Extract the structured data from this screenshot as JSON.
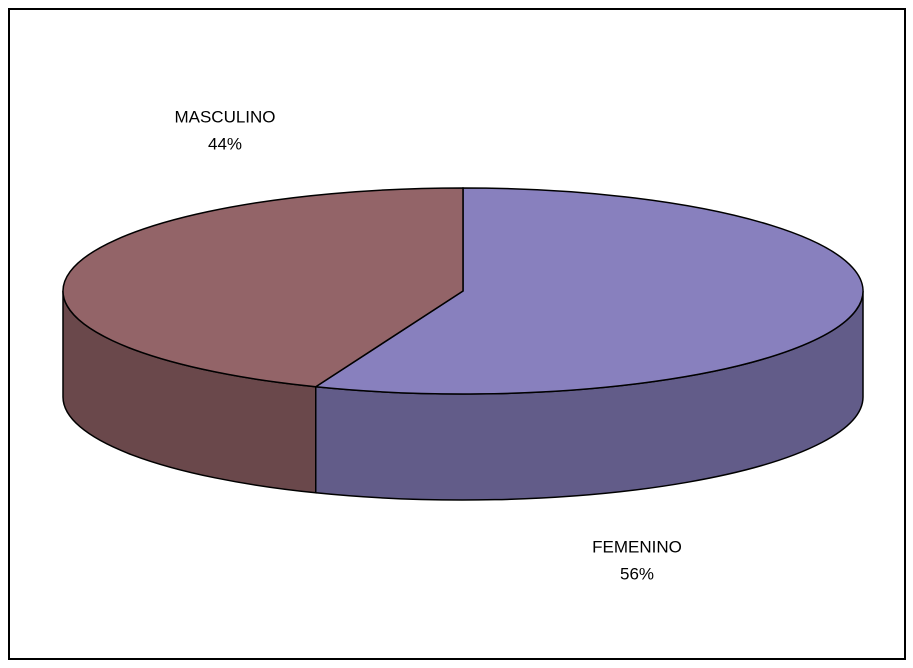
{
  "chart_data": {
    "type": "pie3d",
    "categories": [
      "MASCULINO",
      "FEMENINO"
    ],
    "values": [
      44,
      56
    ],
    "value_labels": [
      "44%",
      "56%"
    ],
    "colors": [
      "#936468",
      "#8880be"
    ]
  }
}
